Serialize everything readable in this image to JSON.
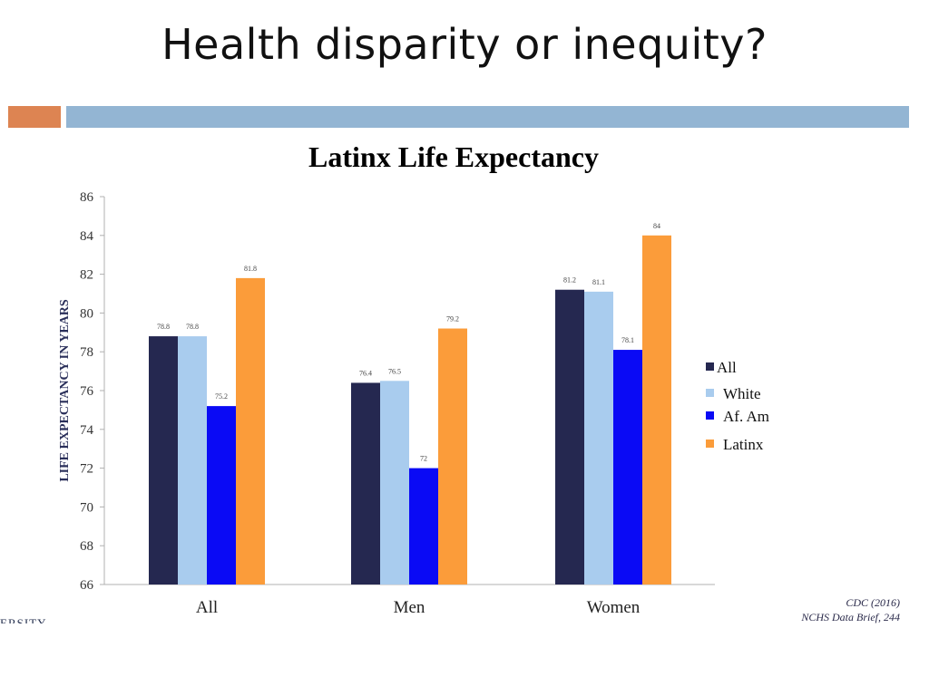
{
  "slide": {
    "title": "Health disparity or inequity?",
    "partial_logo_text": "ERSITY"
  },
  "colors": {
    "accent_orange": "#dd8452",
    "accent_blue": "#93b5d3",
    "series_all": "#252850",
    "series_white": "#a9ccee",
    "series_af_am": "#0a0af5",
    "series_latinx": "#fb9c3a"
  },
  "chart_data": {
    "type": "bar",
    "title": "Latinx Life Expectancy",
    "xlabel": "",
    "ylabel": "LIFE EXPECTANCY IN YEARS",
    "ylim": [
      66,
      86
    ],
    "yticks": [
      66,
      68,
      70,
      72,
      74,
      76,
      78,
      80,
      82,
      84,
      86
    ],
    "categories": [
      "All",
      "Men",
      "Women"
    ],
    "series": [
      {
        "name": "All",
        "values": [
          78.8,
          76.4,
          81.2
        ],
        "labels": [
          "78.8",
          "76.4",
          "81.2"
        ]
      },
      {
        "name": "White",
        "values": [
          78.8,
          76.5,
          81.1
        ],
        "labels": [
          "78.8",
          "76.5",
          "81.1"
        ]
      },
      {
        "name": "Af. Am",
        "values": [
          75.2,
          72,
          78.1
        ],
        "labels": [
          "75.2",
          "72",
          "78.1"
        ]
      },
      {
        "name": "Latinx",
        "values": [
          81.8,
          79.2,
          84
        ],
        "labels": [
          "81.8",
          "79.2",
          "84"
        ]
      }
    ],
    "legend_position": "right",
    "grid": false
  },
  "source": {
    "line1": "CDC (2016)",
    "line2": "NCHS Data Brief, 244"
  }
}
